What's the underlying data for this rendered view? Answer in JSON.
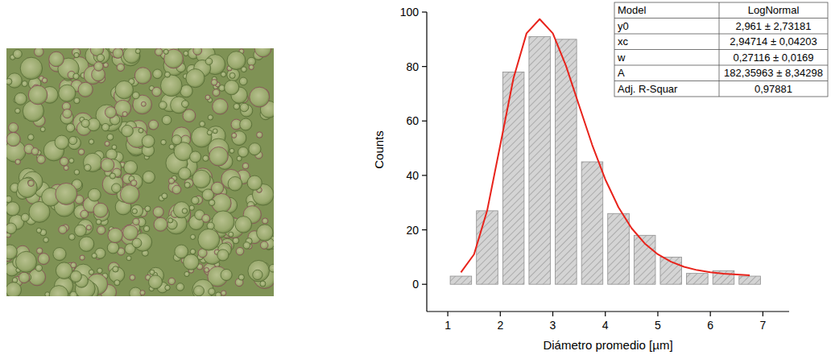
{
  "chart_data": {
    "type": "histogram",
    "xlabel": "Diámetro promedio [µm]",
    "ylabel": "Counts",
    "bins": [
      1,
      1.5,
      2,
      2.5,
      3,
      3.5,
      4,
      4.5,
      5,
      5.5,
      6,
      6.5,
      7
    ],
    "values": [
      3,
      27,
      78,
      91,
      90,
      45,
      26,
      18,
      10,
      4,
      5,
      3
    ],
    "color": "#d4d4d4",
    "xlim": [
      0.6,
      7.5
    ],
    "ylim": [
      -10,
      100
    ],
    "xticks": [
      1,
      2,
      3,
      4,
      5,
      6,
      7
    ],
    "yticks": [
      0,
      20,
      40,
      60,
      80,
      100
    ],
    "grid": false,
    "fit_curve": {
      "type": "line",
      "color": "#e8231b",
      "x": [
        1.25,
        1.5,
        1.75,
        2,
        2.25,
        2.5,
        2.75,
        3,
        3.25,
        3.5,
        3.75,
        4,
        4.25,
        4.5,
        4.75,
        5,
        5.25,
        5.5,
        5.75,
        6,
        6.25,
        6.5,
        6.75
      ],
      "values": [
        4.4,
        11.0,
        27.1,
        51.2,
        75.6,
        92.2,
        97.4,
        92.2,
        80.3,
        65.7,
        51.2,
        38.5,
        28.3,
        20.6,
        15.0,
        11.0,
        8.3,
        6.4,
        5.2,
        4.4,
        3.9,
        3.6,
        3.3
      ]
    },
    "fit_table": {
      "rows": [
        [
          "Model",
          "LogNormal"
        ],
        [
          "y0",
          "2,961 ± 2,73181"
        ],
        [
          "xc",
          "2,94714 ± 0,04203"
        ],
        [
          "w",
          "0,27116 ± 0,0169"
        ],
        [
          "A",
          "182,35963 ± 8,34298"
        ],
        [
          "Adj. R-Squar",
          "0,97881"
        ]
      ]
    }
  }
}
